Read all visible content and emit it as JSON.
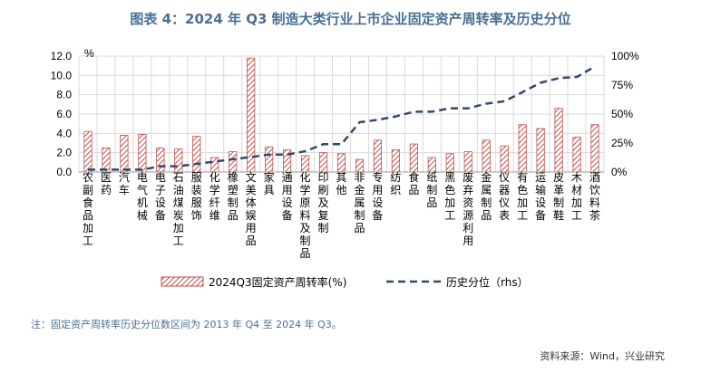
{
  "title": "图表 4：2024 年 Q3 制造大类行业上市企业固定资产周转率及历史分位",
  "footnote": "注：固定资产周转率历史分位数区间为 2013 年 Q4 至 2024 年 Q3。",
  "source": "资料来源：Wind，兴业研究",
  "colors": {
    "bar_fill": "#ffffff",
    "bar_stroke": "#c0504d",
    "bar_hatch": "#c0504d",
    "line": "#2f4a6b",
    "grid": "#d9d9d9"
  },
  "chart_data": {
    "type": "bar",
    "left_axis_unit": "%",
    "ylim": [
      0,
      12
    ],
    "y_ticks": [
      "0.0",
      "2.0",
      "4.0",
      "6.0",
      "8.0",
      "10.0",
      "12.0"
    ],
    "y2lim": [
      0,
      100
    ],
    "y2_ticks": [
      "0%",
      "25%",
      "50%",
      "75%",
      "100%"
    ],
    "categories": [
      "农副食品加工",
      "医药",
      "汽车",
      "电气机械",
      "电子设备",
      "石油煤炭加工",
      "服装服饰",
      "化学纤维",
      "橡塑制品",
      "文美体娱用品",
      "家具",
      "通用设备",
      "化学原料及制品",
      "印刷及复制",
      "其他",
      "非金属制品",
      "专用设备",
      "纺织",
      "食品",
      "纸制品",
      "黑色加工",
      "废弃资源利用",
      "金属制品",
      "仪器仪表",
      "有色加工",
      "运输设备",
      "皮革制鞋",
      "木材加工",
      "酒饮料茶"
    ],
    "series": [
      {
        "name": "2024Q3固定资产周转率(%)",
        "type": "bar",
        "axis": "left",
        "values": [
          4.2,
          2.5,
          3.8,
          3.9,
          2.5,
          2.4,
          3.7,
          1.5,
          2.1,
          11.8,
          2.6,
          2.3,
          1.7,
          2.0,
          1.9,
          1.3,
          3.3,
          2.3,
          2.9,
          1.5,
          1.9,
          2.1,
          3.3,
          2.7,
          4.9,
          4.5,
          6.6,
          3.6,
          4.9
        ]
      },
      {
        "name": "历史分位（rhs）",
        "type": "line",
        "axis": "right",
        "style": "dashed",
        "values": [
          2,
          2,
          2,
          2,
          5,
          5,
          7,
          9,
          11,
          13,
          15,
          15,
          18,
          24,
          24,
          43,
          45,
          48,
          52,
          52,
          55,
          55,
          59,
          61,
          69,
          77,
          81,
          82,
          91
        ]
      }
    ],
    "legend": [
      "2024Q3固定资产周转率(%)",
      "历史分位（rhs）"
    ],
    "legend_placement": "bottom",
    "grid": true
  }
}
